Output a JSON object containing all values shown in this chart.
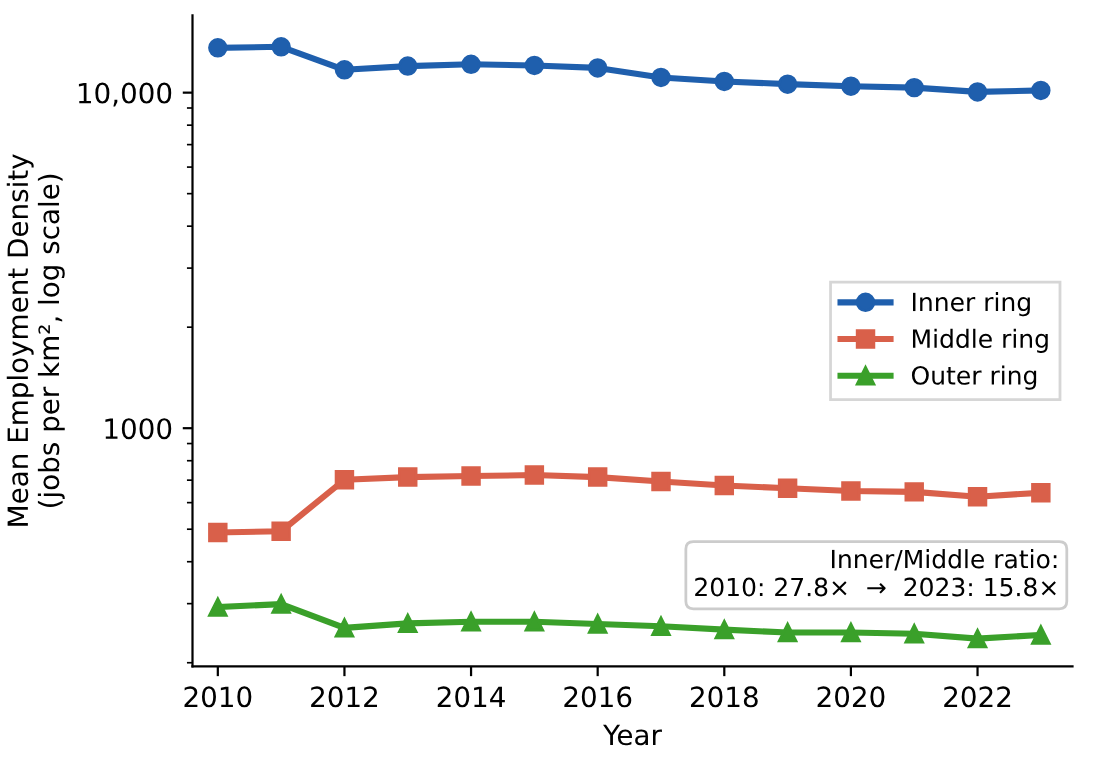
{
  "chart_data": {
    "type": "line",
    "xlabel": "Year",
    "ylabel": "Mean Employment Density\n(jobs per km², log scale)",
    "x": [
      2010,
      2011,
      2012,
      2013,
      2014,
      2015,
      2016,
      2017,
      2018,
      2019,
      2020,
      2021,
      2022,
      2023
    ],
    "series": [
      {
        "name": "Inner ring",
        "color": "#1f5fad",
        "marker": "circle",
        "values": [
          13600,
          13700,
          11700,
          12000,
          12150,
          12050,
          11850,
          11100,
          10800,
          10600,
          10450,
          10350,
          10050,
          10150
        ]
      },
      {
        "name": "Middle ring",
        "color": "#d9604a",
        "marker": "square",
        "values": [
          489,
          493,
          702,
          715,
          720,
          725,
          715,
          694,
          675,
          662,
          650,
          646,
          625,
          642
        ]
      },
      {
        "name": "Outer ring",
        "color": "#3aa02a",
        "marker": "triangle",
        "values": [
          293,
          299,
          254,
          262,
          265,
          265,
          261,
          257,
          251,
          246,
          246,
          244,
          236,
          242
        ]
      }
    ],
    "log": "y",
    "xlim": [
      2009.6,
      2023.5
    ],
    "ylim": [
      195,
      17000
    ],
    "xticks": [
      2010,
      2012,
      2014,
      2016,
      2018,
      2020,
      2022
    ],
    "yticks": [
      {
        "value": 1000,
        "label": "1000"
      },
      {
        "value": 10000,
        "label": "10,000"
      }
    ],
    "grid": false,
    "legend": "right",
    "line_style": "solid",
    "annotations": [
      "Inner/Middle ratio:\n2010: 27.8×  →  2023: 15.8×"
    ]
  }
}
